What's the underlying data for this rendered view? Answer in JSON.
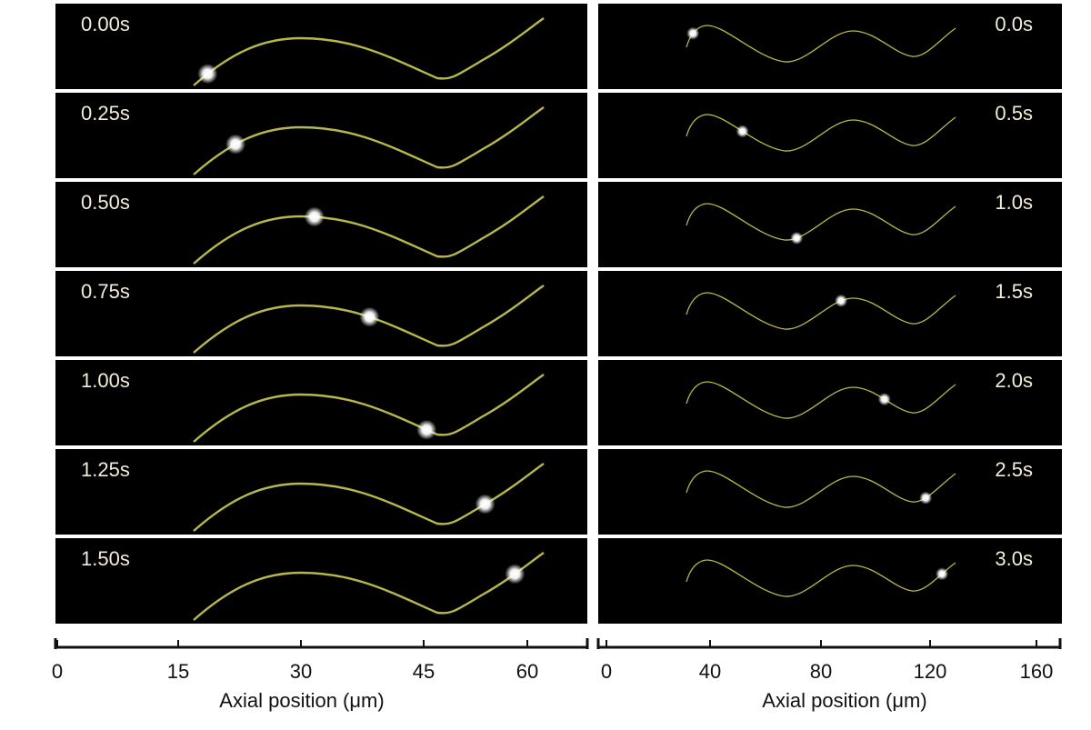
{
  "left_panel": {
    "frames": [
      {
        "time": "0.00s",
        "particle_x": 18.7
      },
      {
        "time": "0.25s",
        "particle_x": 22.1
      },
      {
        "time": "0.50s",
        "particle_x": 31.8
      },
      {
        "time": "0.75s",
        "particle_x": 38.6
      },
      {
        "time": "1.00s",
        "particle_x": 45.6
      },
      {
        "time": "1.25s",
        "particle_x": 52.8
      },
      {
        "time": "1.50s",
        "particle_x": 56.5
      }
    ],
    "axis": {
      "label": "Axial position (μm)",
      "ticks": [
        "0",
        "15",
        "30",
        "45",
        "60"
      ],
      "range": [
        0,
        63
      ]
    }
  },
  "right_panel": {
    "frames": [
      {
        "time": "0.0s",
        "particle_x": 31
      },
      {
        "time": "0.5s",
        "particle_x": 49
      },
      {
        "time": "1.0s",
        "particle_x": 69
      },
      {
        "time": "1.5s",
        "particle_x": 85
      },
      {
        "time": "2.0s",
        "particle_x": 101
      },
      {
        "time": "2.5s",
        "particle_x": 116
      },
      {
        "time": "3.0s",
        "particle_x": 122
      }
    ],
    "axis": {
      "label": "Axial position (μm)",
      "ticks": [
        "0",
        "40",
        "80",
        "120",
        "160"
      ],
      "range": [
        0,
        170
      ]
    }
  },
  "colors": {
    "background": "#000000",
    "fiber": "#b8b84a",
    "particle": "#ffffff",
    "label": "#f3ecd8"
  }
}
